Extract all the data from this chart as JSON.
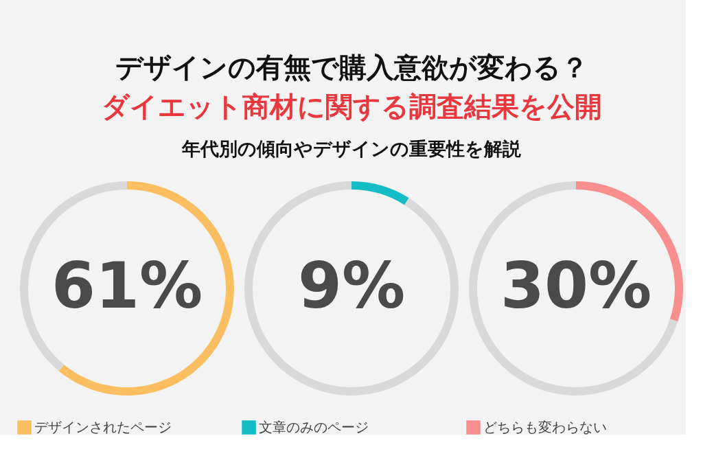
{
  "chart_data": [
    {
      "type": "other",
      "title": "デザインの有無で購入意欲が変わる？",
      "subtitle": "ダイエット商材に関する調査結果を公開",
      "annotations": [
        "年代別の傾向やデザインの重要性を解説"
      ]
    },
    {
      "type": "donut",
      "categories": [
        "デザインされたページ",
        null
      ],
      "values": [
        61,
        39
      ],
      "colors": [
        "#fbbf62",
        "#d9d9d9"
      ],
      "value_labels": [
        "61%",
        null
      ],
      "legend": "bottom"
    },
    {
      "type": "donut",
      "categories": [
        "文章のみのページ",
        null
      ],
      "values": [
        9,
        91
      ],
      "colors": [
        "#14bcc6",
        "#d9d9d9"
      ],
      "value_labels": [
        "9%",
        null
      ],
      "legend": "bottom"
    },
    {
      "type": "donut",
      "categories": [
        "どちらも変わらない",
        null
      ],
      "values": [
        30,
        70
      ],
      "colors": [
        "#f88e8e",
        "#d9d9d9"
      ],
      "value_labels": [
        "30%",
        null
      ],
      "legend": "bottom"
    }
  ]
}
